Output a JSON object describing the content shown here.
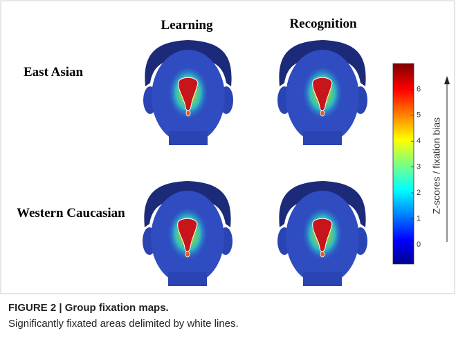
{
  "figure": {
    "columns": [
      "Learning",
      "Recognition"
    ],
    "rows": [
      "East Asian",
      "Western Caucasian"
    ],
    "colorbar": {
      "label": "Z-scores / fixation bias",
      "lim": [
        -0.75,
        7
      ],
      "ticks": [
        0,
        1,
        2,
        3,
        4,
        5,
        6
      ]
    },
    "caption": {
      "label": "FIGURE 2 | Group fixation maps.",
      "text": "Significantly fixated areas delimited by white lines."
    }
  }
}
